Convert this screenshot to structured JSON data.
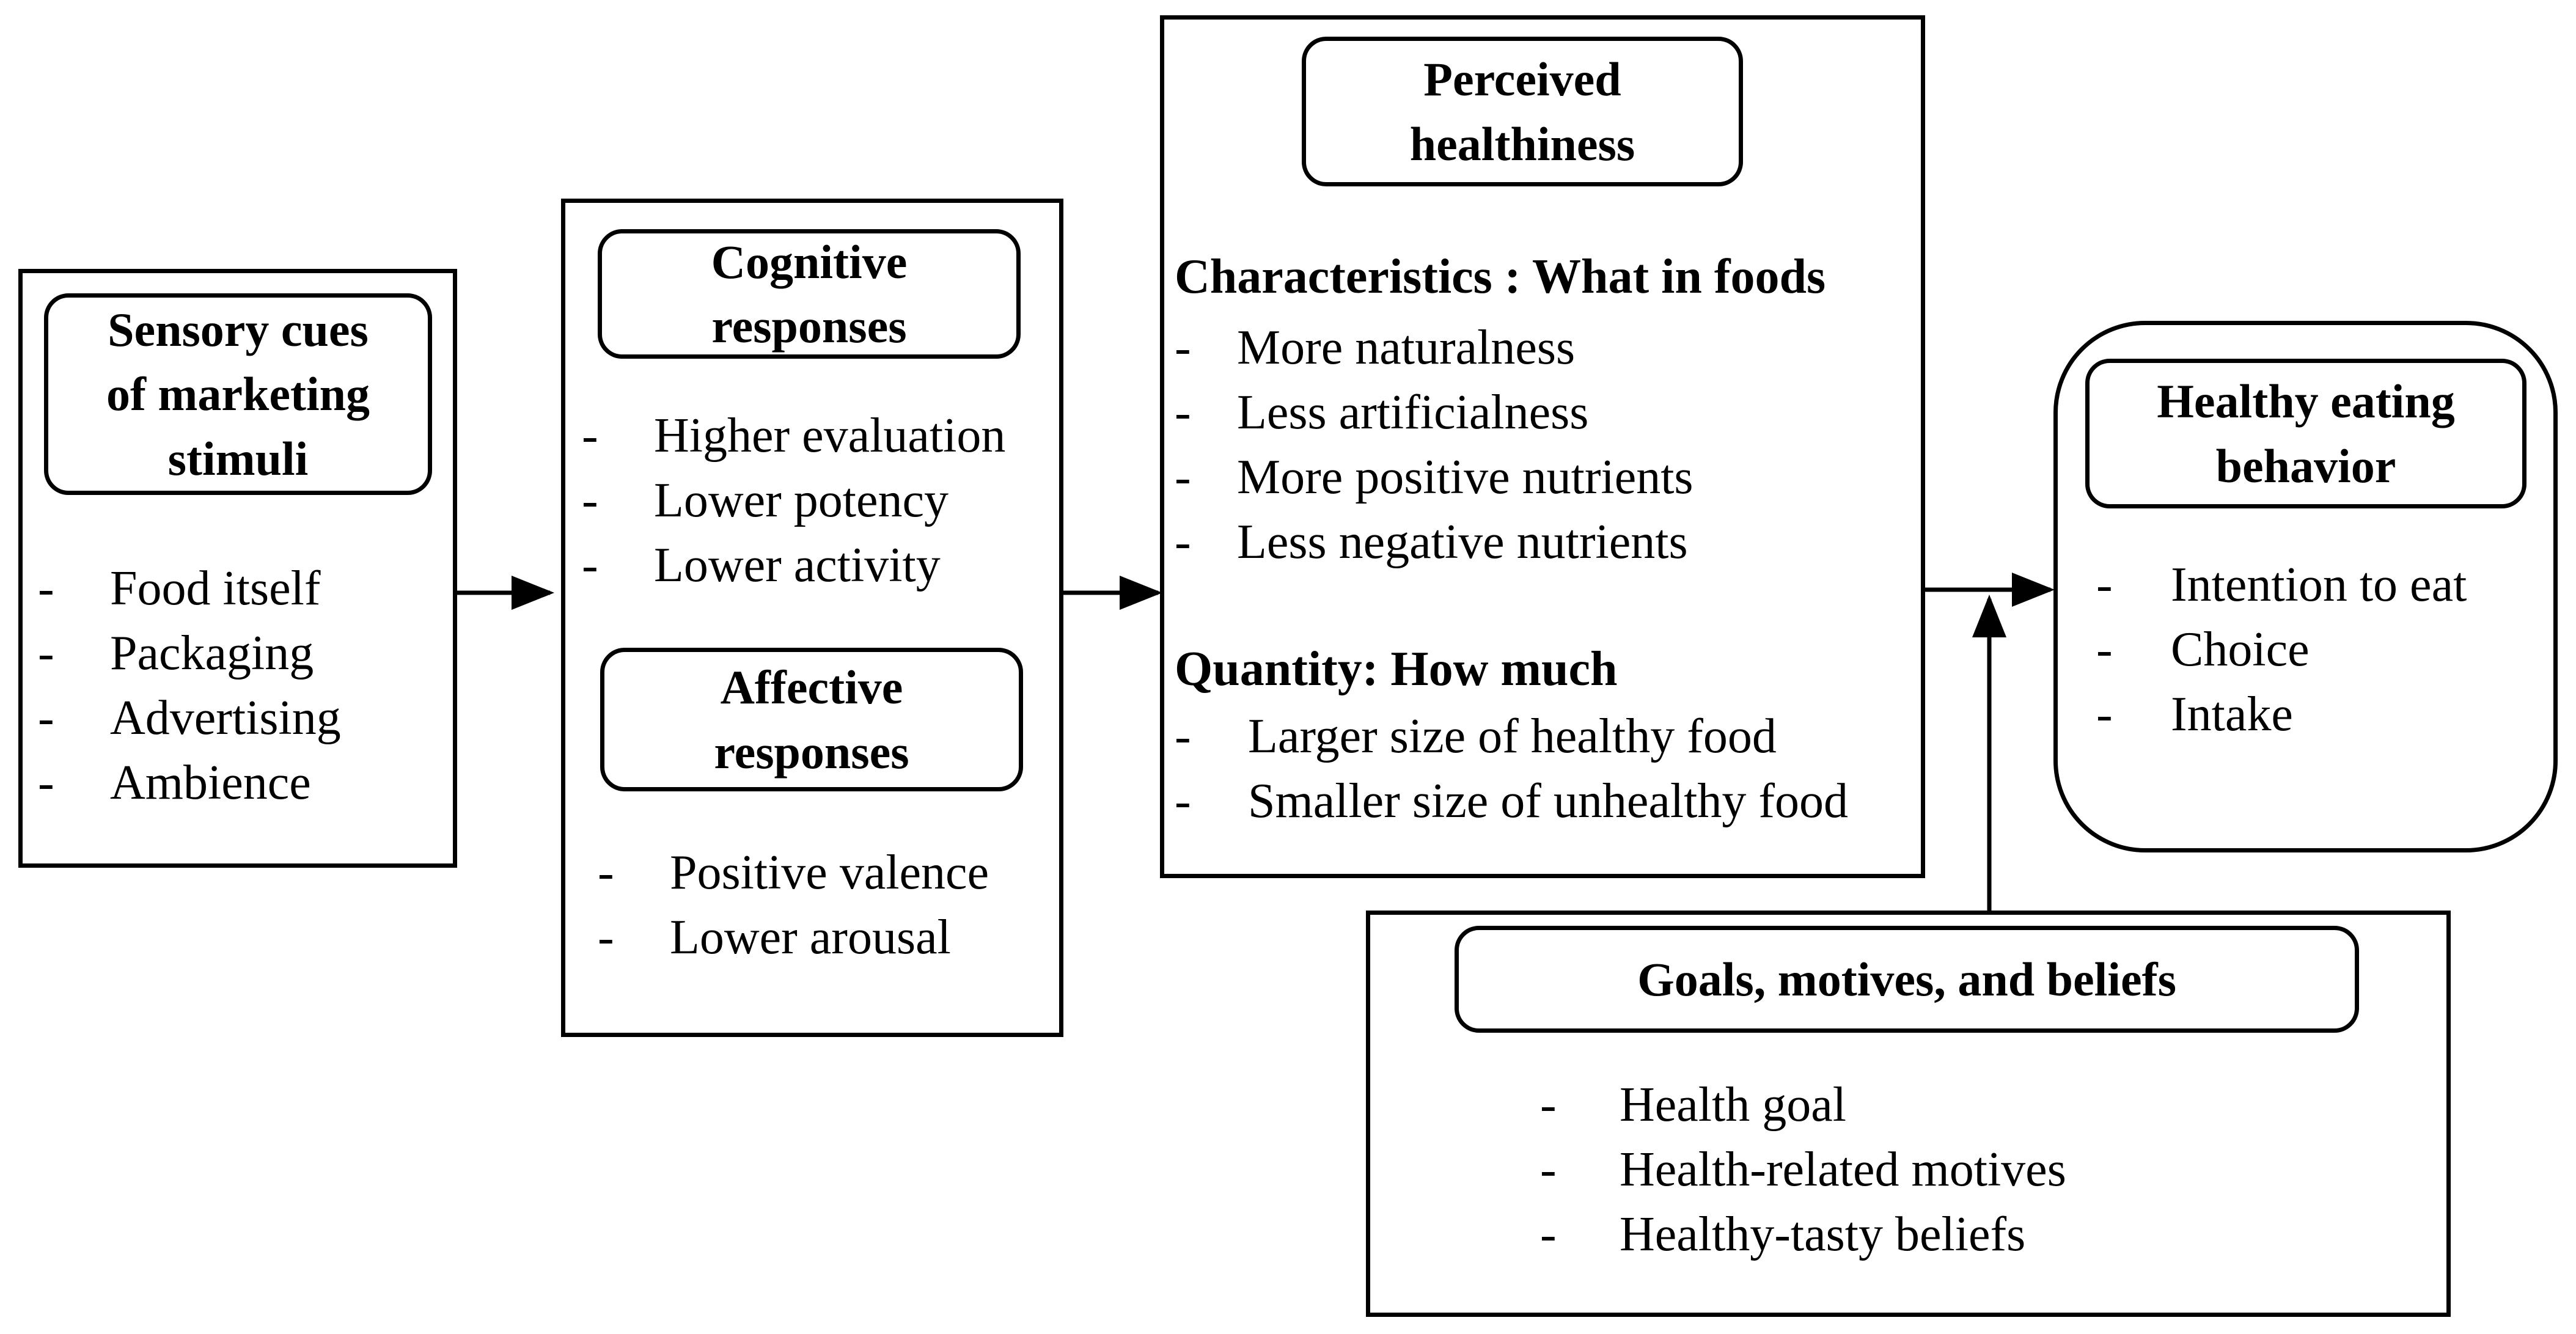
{
  "sensory": {
    "title": "Sensory cues\nof marketing\nstimuli",
    "items": [
      "Food itself",
      "Packaging",
      "Advertising",
      "Ambience"
    ]
  },
  "cognitive": {
    "title": "Cognitive\nresponses",
    "items": [
      "Higher evaluation",
      "Lower potency",
      "Lower activity"
    ]
  },
  "affective": {
    "title": "Affective\nresponses",
    "items": [
      "Positive valence",
      "Lower arousal"
    ]
  },
  "perceived": {
    "title": "Perceived\nhealthiness",
    "characteristics_heading": "Characteristics : What in foods",
    "characteristics": [
      "More naturalness",
      "Less artificialness",
      "More positive nutrients",
      "Less negative nutrients"
    ],
    "quantity_heading": "Quantity: How much",
    "quantity": [
      "Larger size of healthy food",
      "Smaller size of unhealthy food"
    ]
  },
  "behavior": {
    "title": "Healthy eating\nbehavior",
    "items": [
      "Intention to eat",
      "Choice",
      "Intake"
    ]
  },
  "goals": {
    "title": "Goals, motives, and beliefs",
    "items": [
      "Health goal",
      "Health-related motives",
      "Healthy-tasty beliefs"
    ]
  },
  "dash": "-"
}
